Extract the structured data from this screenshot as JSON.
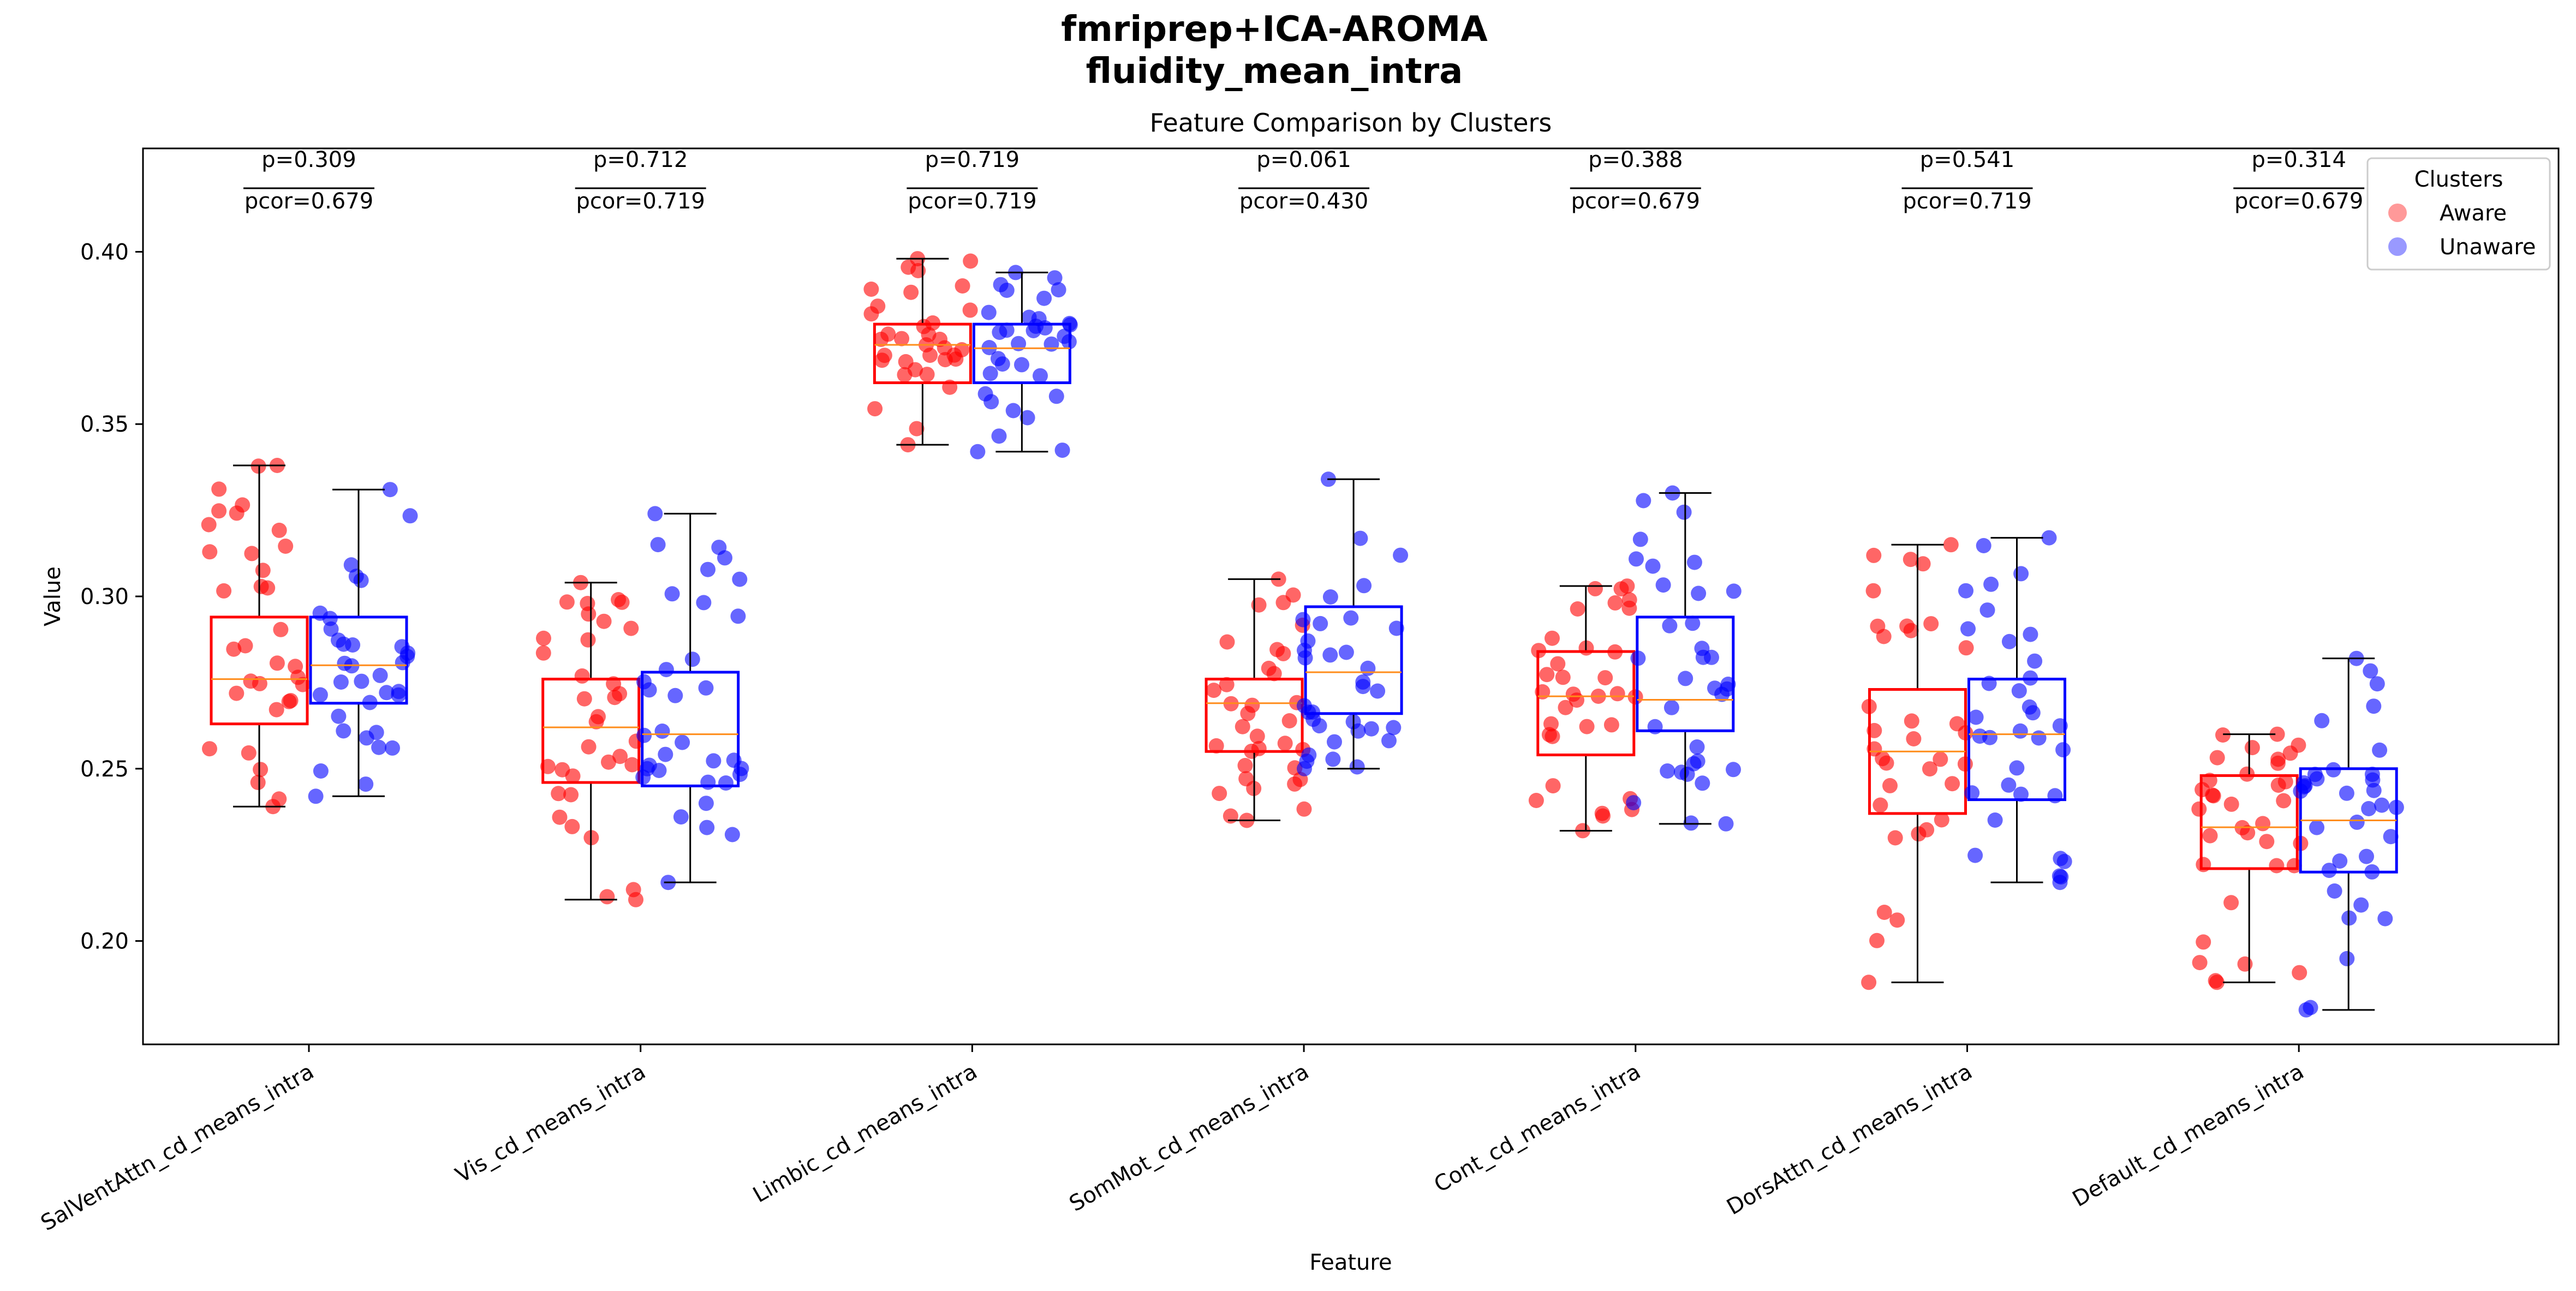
{
  "figure": {
    "suptitle_line1": "fmriprep+ICA-AROMA",
    "suptitle_line2": "fluidity_mean_intra"
  },
  "chart_data": {
    "type": "box",
    "title": "Feature Comparison by Clusters",
    "xlabel": "Feature",
    "ylabel": "Value",
    "ylim": [
      0.17,
      0.43
    ],
    "yticks": [
      "0.20",
      "0.25",
      "0.30",
      "0.35",
      "0.40"
    ],
    "grid": false,
    "legend": {
      "title": "Clusters",
      "placement": "top-right",
      "entries": [
        {
          "name": "Aware",
          "color": "#ff0000"
        },
        {
          "name": "Unaware",
          "color": "#0000ff"
        }
      ]
    },
    "median_color": "#ff8c1a",
    "categories": [
      "SalVentAttn_cd_means_intra",
      "Vis_cd_means_intra",
      "Limbic_cd_means_intra",
      "SomMot_cd_means_intra",
      "Cont_cd_means_intra",
      "DorsAttn_cd_means_intra",
      "Default_cd_means_intra"
    ],
    "p_labels": [
      "p=0.309",
      "p=0.712",
      "p=0.719",
      "p=0.061",
      "p=0.388",
      "p=0.541",
      "p=0.314"
    ],
    "pcor_labels": [
      "pcor=0.679",
      "pcor=0.719",
      "pcor=0.719",
      "pcor=0.430",
      "pcor=0.679",
      "pcor=0.719",
      "pcor=0.679"
    ],
    "series": [
      {
        "name": "Aware",
        "color": "#ff0000",
        "boxes": [
          {
            "whislo": 0.239,
            "q1": 0.263,
            "med": 0.276,
            "q3": 0.294,
            "whishi": 0.338
          },
          {
            "whislo": 0.212,
            "q1": 0.246,
            "med": 0.262,
            "q3": 0.276,
            "whishi": 0.304
          },
          {
            "whislo": 0.344,
            "q1": 0.362,
            "med": 0.373,
            "q3": 0.379,
            "whishi": 0.398
          },
          {
            "whislo": 0.235,
            "q1": 0.255,
            "med": 0.269,
            "q3": 0.276,
            "whishi": 0.305
          },
          {
            "whislo": 0.232,
            "q1": 0.254,
            "med": 0.271,
            "q3": 0.284,
            "whishi": 0.303
          },
          {
            "whislo": 0.188,
            "q1": 0.237,
            "med": 0.255,
            "q3": 0.273,
            "whishi": 0.315
          },
          {
            "whislo": 0.188,
            "q1": 0.221,
            "med": 0.233,
            "q3": 0.248,
            "whishi": 0.26
          }
        ]
      },
      {
        "name": "Unaware",
        "color": "#0000ff",
        "boxes": [
          {
            "whislo": 0.242,
            "q1": 0.269,
            "med": 0.28,
            "q3": 0.294,
            "whishi": 0.331
          },
          {
            "whislo": 0.217,
            "q1": 0.245,
            "med": 0.26,
            "q3": 0.278,
            "whishi": 0.324
          },
          {
            "whislo": 0.342,
            "q1": 0.362,
            "med": 0.372,
            "q3": 0.379,
            "whishi": 0.394
          },
          {
            "whislo": 0.25,
            "q1": 0.266,
            "med": 0.278,
            "q3": 0.297,
            "whishi": 0.334
          },
          {
            "whislo": 0.234,
            "q1": 0.261,
            "med": 0.27,
            "q3": 0.294,
            "whishi": 0.33
          },
          {
            "whislo": 0.217,
            "q1": 0.241,
            "med": 0.26,
            "q3": 0.276,
            "whishi": 0.317
          },
          {
            "whislo": 0.18,
            "q1": 0.22,
            "med": 0.235,
            "q3": 0.25,
            "whishi": 0.282
          }
        ]
      }
    ]
  }
}
